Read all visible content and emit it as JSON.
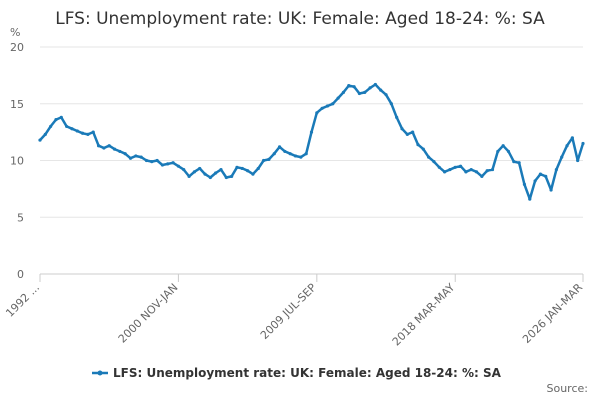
{
  "chart_data": {
    "type": "line",
    "title": "LFS: Unemployment rate: UK: Female: Aged 18-24: %: SA",
    "y_label": "%",
    "source": "Source:",
    "categories": [
      "1992 ...",
      null,
      null,
      null,
      null,
      null,
      null,
      null,
      null,
      null,
      null,
      null,
      null,
      null,
      null,
      null,
      null,
      null,
      null,
      null,
      null,
      null,
      null,
      null,
      null,
      null,
      "2000 NOV-JAN",
      null,
      null,
      null,
      null,
      null,
      null,
      null,
      null,
      null,
      null,
      null,
      null,
      null,
      null,
      null,
      null,
      null,
      null,
      null,
      null,
      null,
      null,
      null,
      null,
      null,
      "2009 JUL-SEP",
      null,
      null,
      null,
      null,
      null,
      null,
      null,
      null,
      null,
      null,
      null,
      null,
      null,
      null,
      null,
      null,
      null,
      null,
      null,
      null,
      null,
      null,
      null,
      null,
      null,
      "2018 MAR-MAY",
      null,
      null,
      null,
      null,
      null,
      null,
      null,
      null,
      null,
      null,
      null,
      null,
      null,
      null,
      null,
      null,
      null,
      null,
      null,
      null,
      null,
      null,
      null,
      "2026 JAN-MAR"
    ],
    "series": [
      {
        "name": "LFS: Unemployment rate: UK: Female: Aged 18-24: %: SA",
        "color": "#1a7ab8",
        "values": [
          11.8,
          12.3,
          13.0,
          13.6,
          13.8,
          13.0,
          12.8,
          12.6,
          12.4,
          12.3,
          12.5,
          11.3,
          11.1,
          11.3,
          11.0,
          10.8,
          10.6,
          10.2,
          10.4,
          10.3,
          10.0,
          9.9,
          10.0,
          9.6,
          9.7,
          9.8,
          9.5,
          9.2,
          8.6,
          9.0,
          9.3,
          8.8,
          8.5,
          8.9,
          9.2,
          8.5,
          8.6,
          9.4,
          9.3,
          9.1,
          8.8,
          9.3,
          10.0,
          10.1,
          10.6,
          11.2,
          10.8,
          10.6,
          10.4,
          10.3,
          10.6,
          12.5,
          14.2,
          14.6,
          14.8,
          15.0,
          15.5,
          16.0,
          16.6,
          16.5,
          15.9,
          16.0,
          16.4,
          16.7,
          16.2,
          15.8,
          15.0,
          13.8,
          12.8,
          12.3,
          12.5,
          11.4,
          11.0,
          10.3,
          9.9,
          9.4,
          9.0,
          9.2,
          9.4,
          9.5,
          9.0,
          9.2,
          9.0,
          8.6,
          9.1,
          9.2,
          10.8,
          11.3,
          10.8,
          9.9,
          9.8,
          7.9,
          6.6,
          8.2,
          8.8,
          8.6,
          7.4,
          9.2,
          10.3,
          11.3,
          12.0,
          10.0,
          11.5
        ]
      }
    ],
    "ylim": [
      0,
      20
    ],
    "yticks": [
      0,
      5,
      10,
      15,
      20
    ],
    "grid": true
  }
}
